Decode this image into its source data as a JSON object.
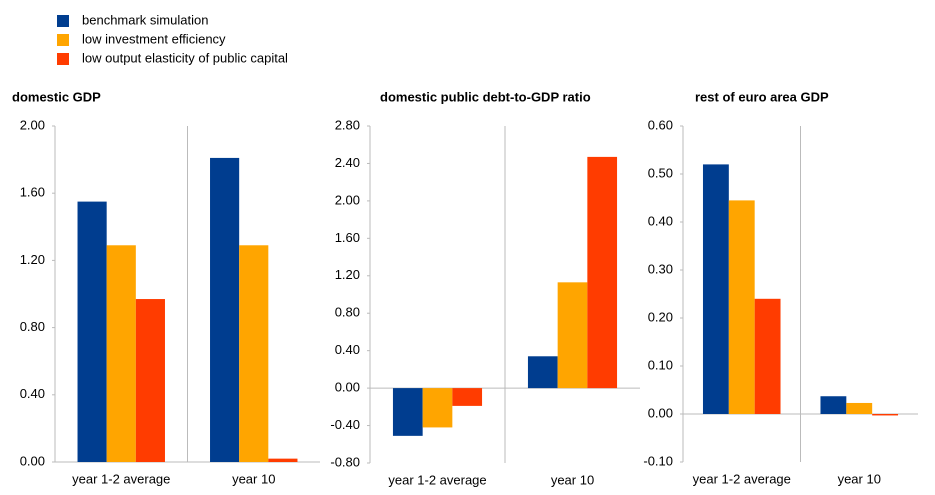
{
  "chart_data": [
    {
      "type": "bar",
      "title": "domestic GDP",
      "categories": [
        "year 1-2 average",
        "year 10"
      ],
      "series": [
        {
          "name": "benchmark simulation",
          "color": "#003d8f",
          "values": [
            1.55,
            1.81
          ]
        },
        {
          "name": "low investment efficiency",
          "color": "#ffa500",
          "values": [
            1.29,
            1.29
          ]
        },
        {
          "name": "low output elasticity of public capital",
          "color": "#ff3c00",
          "values": [
            0.97,
            0.02
          ]
        }
      ],
      "ylim": [
        0,
        2
      ],
      "yticks": [
        {
          "value": 0,
          "label": "0.00"
        },
        {
          "value": 0.4,
          "label": "0.40"
        },
        {
          "value": 0.8,
          "label": "0.80"
        },
        {
          "value": 1.2,
          "label": "1.20"
        },
        {
          "value": 1.6,
          "label": "1.60"
        },
        {
          "value": 2,
          "label": "2.00"
        }
      ]
    },
    {
      "type": "bar",
      "title": "domestic public debt-to-GDP ratio",
      "categories": [
        "year 1-2 average",
        "year 10"
      ],
      "series": [
        {
          "name": "benchmark simulation",
          "color": "#003d8f",
          "values": [
            -0.51,
            0.34
          ]
        },
        {
          "name": "low investment efficiency",
          "color": "#ffa500",
          "values": [
            -0.42,
            1.13
          ]
        },
        {
          "name": "low output elasticity of public capital",
          "color": "#ff3c00",
          "values": [
            -0.19,
            2.47
          ]
        }
      ],
      "ylim": [
        -0.8,
        2.8
      ],
      "yticks": [
        {
          "value": -0.8,
          "label": "-0.80"
        },
        {
          "value": -0.4,
          "label": "-0.40"
        },
        {
          "value": 0,
          "label": "0.00"
        },
        {
          "value": 0.4,
          "label": "0.40"
        },
        {
          "value": 0.8,
          "label": "0.80"
        },
        {
          "value": 1.2,
          "label": "1.20"
        },
        {
          "value": 1.6,
          "label": "1.60"
        },
        {
          "value": 2,
          "label": "2.00"
        },
        {
          "value": 2.4,
          "label": "2.40"
        },
        {
          "value": 2.8,
          "label": "2.80"
        }
      ]
    },
    {
      "type": "bar",
      "title": "rest of euro area GDP",
      "categories": [
        "year 1-2 average",
        "year 10"
      ],
      "series": [
        {
          "name": "benchmark simulation",
          "color": "#003d8f",
          "values": [
            0.52,
            0.037
          ]
        },
        {
          "name": "low investment efficiency",
          "color": "#ffa500",
          "values": [
            0.445,
            0.023
          ]
        },
        {
          "name": "low output elasticity of public capital",
          "color": "#ff3c00",
          "values": [
            0.24,
            -0.003
          ]
        }
      ],
      "ylim": [
        -0.1,
        0.6
      ],
      "yticks": [
        {
          "value": -0.1,
          "label": "-0.10"
        },
        {
          "value": 0,
          "label": "0.00"
        },
        {
          "value": 0.1,
          "label": "0.10"
        },
        {
          "value": 0.2,
          "label": "0.20"
        },
        {
          "value": 0.3,
          "label": "0.30"
        },
        {
          "value": 0.4,
          "label": "0.40"
        },
        {
          "value": 0.5,
          "label": "0.50"
        },
        {
          "value": 0.6,
          "label": "0.60"
        }
      ]
    }
  ]
}
